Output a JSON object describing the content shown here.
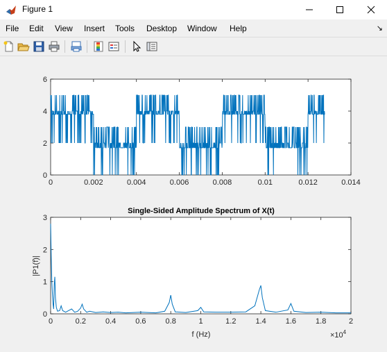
{
  "window": {
    "title": "Figure 1"
  },
  "menu": {
    "file": "File",
    "edit": "Edit",
    "view": "View",
    "insert": "Insert",
    "tools": "Tools",
    "desktop": "Desktop",
    "window": "Window",
    "help": "Help"
  },
  "toolbar_icons": [
    "new-figure-icon",
    "open-file-icon",
    "save-icon",
    "print-icon",
    "print-preview-icon",
    "toggle-colorbar-icon",
    "insert-legend-icon",
    "edit-plot-arrow-icon",
    "property-editor-icon"
  ],
  "colors": {
    "line": "#0072bd",
    "axes_bg": "#ffffff",
    "figure_bg": "#f0f0f0"
  },
  "chart_data": [
    {
      "type": "line",
      "title": "",
      "xlabel": "",
      "ylabel": "",
      "xlim": [
        0,
        0.014
      ],
      "ylim": [
        0,
        6
      ],
      "xticks": [
        "0",
        "0.002",
        "0.004",
        "0.006",
        "0.008",
        "0.01",
        "0.012",
        "0.014"
      ],
      "yticks": [
        "0",
        "2",
        "4",
        "6"
      ],
      "series": [
        {
          "description_levels": {
            "high_band": [
              2,
              5
            ],
            "low_band": [
              0,
              3
            ]
          },
          "segments": [
            {
              "x_start": 0,
              "x_end": 0.002,
              "band": "high"
            },
            {
              "x_start": 0.002,
              "x_end": 0.004,
              "band": "low"
            },
            {
              "x_start": 0.004,
              "x_end": 0.006,
              "band": "high"
            },
            {
              "x_start": 0.006,
              "x_end": 0.008,
              "band": "low"
            },
            {
              "x_start": 0.008,
              "x_end": 0.01,
              "band": "high"
            },
            {
              "x_start": 0.01,
              "x_end": 0.012,
              "band": "low"
            },
            {
              "x_start": 0.012,
              "x_end": 0.0128,
              "band": "high"
            }
          ]
        }
      ]
    },
    {
      "type": "line",
      "title": "Single-Sided Amplitude Spectrum of X(t)",
      "xlabel": "f (Hz)",
      "ylabel": "|P1(f)|",
      "xlim": [
        0,
        20000
      ],
      "ylim": [
        0,
        3
      ],
      "xticks": [
        "0",
        "0.2",
        "0.4",
        "0.6",
        "0.8",
        "1",
        "1.2",
        "1.4",
        "1.6",
        "1.8",
        "2"
      ],
      "yticks": [
        "0",
        "1",
        "2",
        "3"
      ],
      "x_exponent_label": "×10",
      "x_exponent_power": "4",
      "series": [
        {
          "points": [
            [
              0,
              2.8
            ],
            [
              40,
              1.8
            ],
            [
              80,
              1.0
            ],
            [
              120,
              0.6
            ],
            [
              160,
              0.3
            ],
            [
              200,
              0.15
            ],
            [
              240,
              0.9
            ],
            [
              280,
              1.15
            ],
            [
              320,
              0.5
            ],
            [
              380,
              0.2
            ],
            [
              460,
              0.08
            ],
            [
              600,
              0.1
            ],
            [
              700,
              0.25
            ],
            [
              800,
              0.1
            ],
            [
              1000,
              0.05
            ],
            [
              1200,
              0.1
            ],
            [
              1400,
              0.15
            ],
            [
              1600,
              0.05
            ],
            [
              1800,
              0.08
            ],
            [
              2000,
              0.18
            ],
            [
              2100,
              0.3
            ],
            [
              2200,
              0.15
            ],
            [
              2400,
              0.05
            ],
            [
              2600,
              0.08
            ],
            [
              3000,
              0.04
            ],
            [
              3500,
              0.06
            ],
            [
              4000,
              0.04
            ],
            [
              4500,
              0.05
            ],
            [
              5000,
              0.03
            ],
            [
              6000,
              0.05
            ],
            [
              7000,
              0.03
            ],
            [
              7600,
              0.08
            ],
            [
              7900,
              0.35
            ],
            [
              8000,
              0.58
            ],
            [
              8100,
              0.3
            ],
            [
              8300,
              0.06
            ],
            [
              9000,
              0.04
            ],
            [
              9800,
              0.1
            ],
            [
              10000,
              0.2
            ],
            [
              10200,
              0.06
            ],
            [
              11000,
              0.05
            ],
            [
              12000,
              0.05
            ],
            [
              13000,
              0.06
            ],
            [
              13600,
              0.25
            ],
            [
              13900,
              0.75
            ],
            [
              14000,
              0.88
            ],
            [
              14100,
              0.5
            ],
            [
              14300,
              0.1
            ],
            [
              15000,
              0.05
            ],
            [
              15800,
              0.12
            ],
            [
              16000,
              0.32
            ],
            [
              16200,
              0.08
            ],
            [
              17000,
              0.04
            ],
            [
              18000,
              0.05
            ],
            [
              19000,
              0.03
            ],
            [
              20000,
              0.03
            ]
          ]
        }
      ]
    }
  ]
}
